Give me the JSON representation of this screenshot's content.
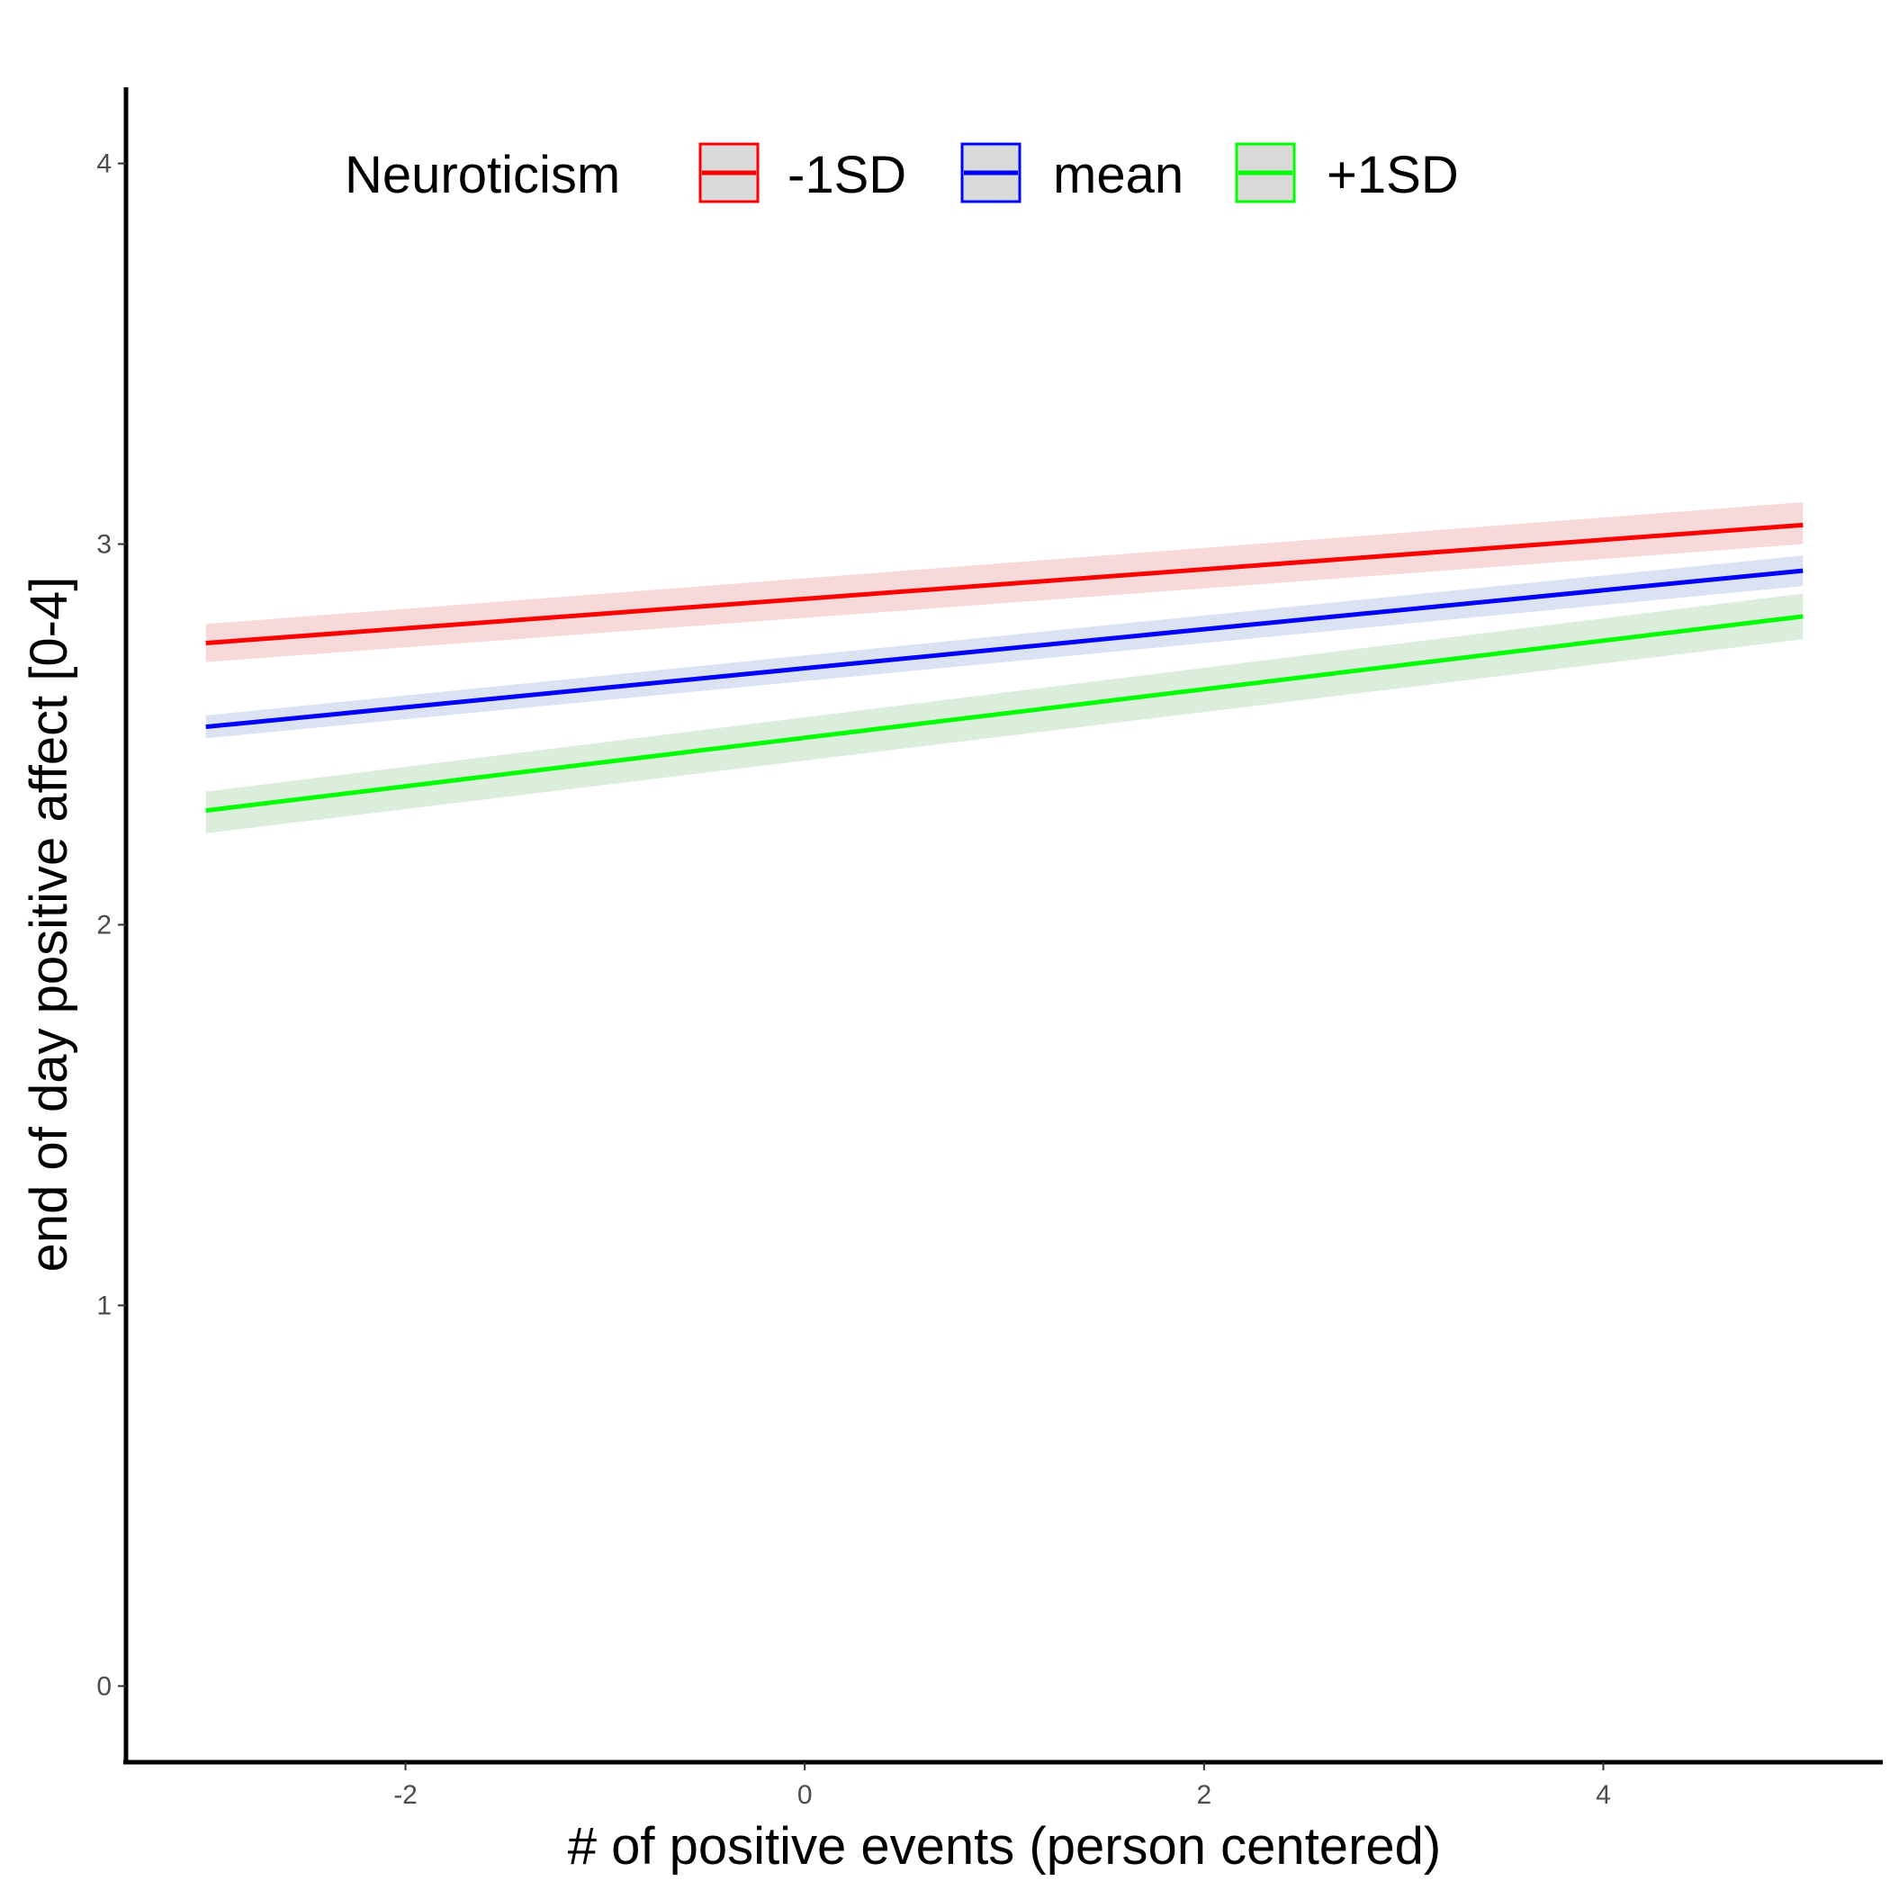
{
  "chart_data": {
    "type": "line",
    "title": "",
    "xlabel": "# of positive events (person centered)",
    "ylabel": "end of day positive affect [0-4]",
    "xlim": [
      -3.4,
      5.4
    ],
    "ylim": [
      -0.2,
      4.2
    ],
    "x_ticks": [
      {
        "value": -2,
        "label": "-2"
      },
      {
        "value": 0,
        "label": "0"
      },
      {
        "value": 2,
        "label": "2"
      },
      {
        "value": 4,
        "label": "4"
      }
    ],
    "y_ticks": [
      {
        "value": 0,
        "label": "0"
      },
      {
        "value": 1,
        "label": "1"
      },
      {
        "value": 2,
        "label": "2"
      },
      {
        "value": 3,
        "label": "3"
      },
      {
        "value": 4,
        "label": "4"
      }
    ],
    "grid": false,
    "legend": {
      "title": "Neuroticism",
      "placement": "top-left inside",
      "orientation": "horizontal"
    },
    "series": [
      {
        "name": "-1SD",
        "color": "#ff0000",
        "band_color": "#f4cccc",
        "x": [
          -3,
          5
        ],
        "y": [
          2.74,
          3.05
        ],
        "lower": [
          2.69,
          3.0
        ],
        "upper": [
          2.79,
          3.11
        ]
      },
      {
        "name": "mean",
        "color": "#0000ff",
        "band_color": "#cfd8f0",
        "x": [
          -3,
          5
        ],
        "y": [
          2.52,
          2.93
        ],
        "lower": [
          2.49,
          2.89
        ],
        "upper": [
          2.55,
          2.97
        ]
      },
      {
        "name": "+1SD",
        "color": "#00ff00",
        "band_color": "#cfe8cf",
        "x": [
          -3,
          5
        ],
        "y": [
          2.3,
          2.81
        ],
        "lower": [
          2.24,
          2.75
        ],
        "upper": [
          2.35,
          2.87
        ]
      }
    ]
  }
}
